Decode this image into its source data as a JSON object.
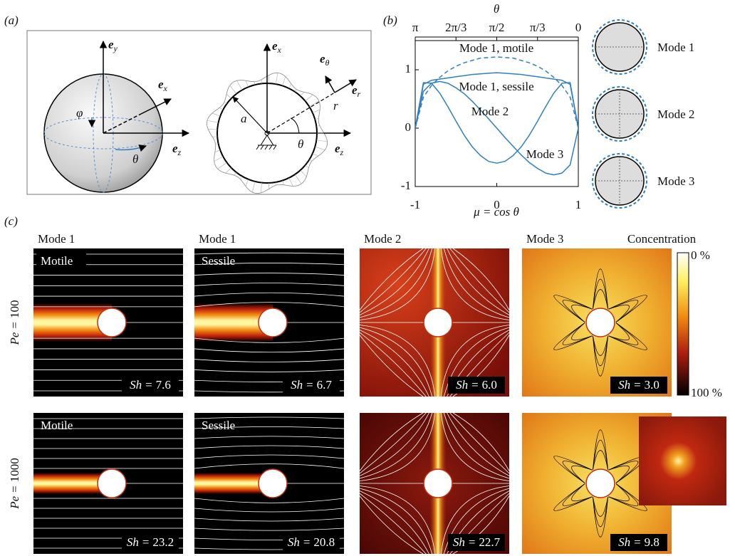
{
  "panel_labels": [
    "(a)",
    "(b)",
    "(c)"
  ],
  "panel_a": {
    "sphere": {
      "ey": {
        "base": "e",
        "sub": "y"
      },
      "ex": {
        "base": "e",
        "sub": "x"
      },
      "ez": {
        "base": "e",
        "sub": "z"
      },
      "phi": "φ",
      "theta": "θ"
    },
    "polar": {
      "ex": {
        "base": "e",
        "sub": "x"
      },
      "etheta": {
        "base": "e",
        "sub": "θ"
      },
      "er": {
        "base": "e",
        "sub": "r"
      },
      "r": "r",
      "a": "a",
      "theta": "θ",
      "ez": {
        "base": "e",
        "sub": "z"
      }
    }
  },
  "chart_data": {
    "type": "line",
    "x_label": "μ = cos θ",
    "x2_label": "θ",
    "x": [
      -1,
      -0.9,
      -0.8,
      -0.7,
      -0.6,
      -0.5,
      -0.4,
      -0.3,
      -0.2,
      -0.1,
      0,
      0.1,
      0.2,
      0.3,
      0.4,
      0.5,
      0.6,
      0.7,
      0.8,
      0.9,
      1
    ],
    "series": [
      {
        "name": "Mode 1, motile",
        "color": "#2f7fc1",
        "dashed": true,
        "values": [
          0,
          0.53,
          0.73,
          0.87,
          0.98,
          1.06,
          1.12,
          1.16,
          1.2,
          1.21,
          1.22,
          1.21,
          1.2,
          1.16,
          1.12,
          1.06,
          0.98,
          0.87,
          0.73,
          0.53,
          0
        ]
      },
      {
        "name": "Mode 1, sessile",
        "color": "#2f7fc1",
        "dashed": false,
        "values": [
          0,
          0.75,
          0.82,
          0.84,
          0.86,
          0.88,
          0.9,
          0.92,
          0.93,
          0.94,
          0.95,
          0.94,
          0.93,
          0.92,
          0.9,
          0.88,
          0.86,
          0.84,
          0.82,
          0.75,
          0
        ]
      },
      {
        "name": "Mode 2",
        "color": "#2f7fc1",
        "dashed": false,
        "values": [
          0,
          0.63,
          0.77,
          0.8,
          0.77,
          0.69,
          0.59,
          0.46,
          0.31,
          0.16,
          0,
          -0.16,
          -0.31,
          -0.46,
          -0.59,
          -0.69,
          -0.77,
          -0.8,
          -0.77,
          -0.63,
          0
        ]
      },
      {
        "name": "Mode 3",
        "color": "#2f7fc1",
        "dashed": false,
        "values": [
          0,
          0.78,
          0.77,
          0.6,
          0.37,
          0.12,
          -0.12,
          -0.32,
          -0.47,
          -0.57,
          -0.6,
          -0.57,
          -0.47,
          -0.32,
          -0.12,
          0.12,
          0.37,
          0.6,
          0.77,
          0.78,
          0
        ]
      }
    ],
    "xlim": [
      -1,
      1
    ],
    "xticks": [
      -1,
      0,
      1
    ],
    "x2ticks": [
      {
        "value": -1,
        "label": "π"
      },
      {
        "value": -0.5,
        "label": "2π/3"
      },
      {
        "value": 0,
        "label": "π/2"
      },
      {
        "value": 0.5,
        "label": "π/3"
      },
      {
        "value": 1,
        "label": "0"
      }
    ],
    "ylim": [
      -1,
      1.5
    ],
    "yticks": [
      -1,
      0,
      1
    ]
  },
  "mode_shapes": [
    "Mode 1",
    "Mode 2",
    "Mode 3"
  ],
  "panel_c": {
    "columns": [
      "Mode 1",
      "Mode 1",
      "Mode 2",
      "Mode 3"
    ],
    "pe_symbol": "Pe",
    "sh_symbol": "Sh",
    "equals": "=",
    "rows": [
      {
        "pe": 100,
        "panels": [
          {
            "tag": "Motile",
            "sh": "7.6"
          },
          {
            "tag": "Sessile",
            "sh": "6.7"
          },
          {
            "sh": "6.0"
          },
          {
            "sh": "3.0"
          }
        ]
      },
      {
        "pe": 1000,
        "panels": [
          {
            "tag": "Motile",
            "sh": "23.2"
          },
          {
            "tag": "Sessile",
            "sh": "20.8"
          },
          {
            "sh": "22.7"
          },
          {
            "sh": "9.8"
          }
        ]
      }
    ],
    "colorbar": {
      "title": "Concentration",
      "max_label": "0 %",
      "min_label": "100 %"
    }
  }
}
